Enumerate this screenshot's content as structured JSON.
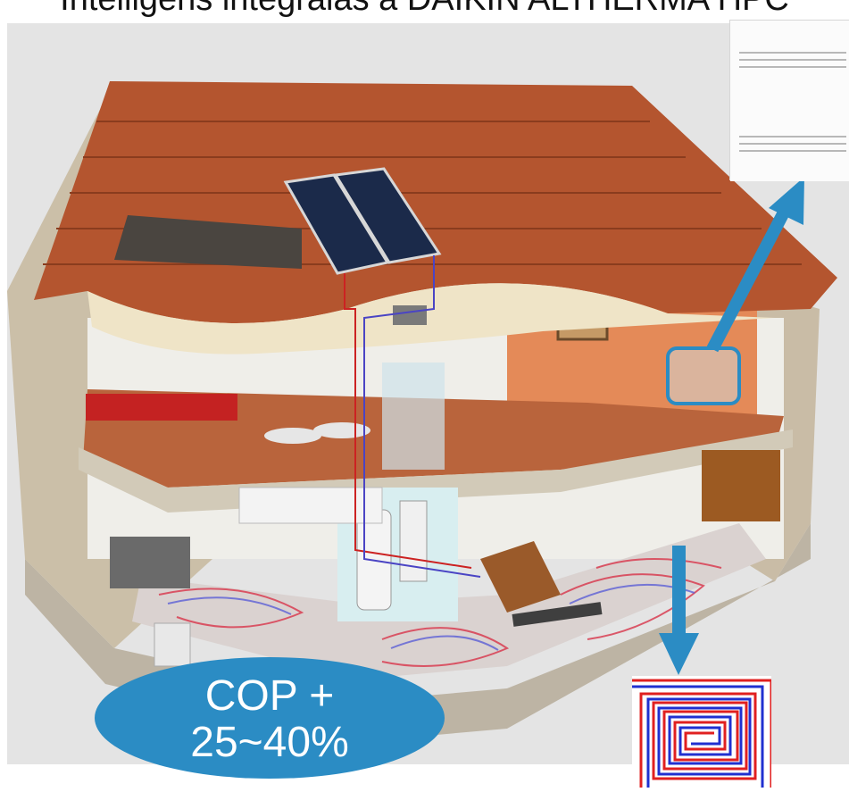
{
  "title": "Intelligens integrálás a DAIKIN ALTHERMA HPC",
  "badge": {
    "line1": "COP +",
    "line2": "25~40%"
  },
  "colors": {
    "accent": "#2b8cc4",
    "roof": "#b4552f",
    "wall": "#cbbfa8",
    "floor": "#b9643c",
    "pipe_red": "#e02020",
    "pipe_blue": "#2030d0"
  },
  "icons": {
    "ac": "ac-unit-icon",
    "coil": "floor-heating-coil-icon",
    "panel": "solar-panel-icon"
  }
}
